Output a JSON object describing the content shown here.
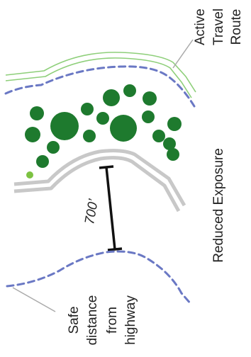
{
  "labels": {
    "active_travel_route": [
      "Active",
      "Travel",
      "Route"
    ],
    "reduced_exposure": "Reduced Exposure",
    "distance": "700’",
    "safe_distance": [
      "Safe",
      "distance",
      "from",
      "highway"
    ]
  },
  "colors": {
    "travel_route": "#8ecf7a",
    "dashed_boundary": "#6a78c4",
    "highway": "#c8c8c8",
    "tree": "#1e7a2e",
    "small_tree": "#7cc242",
    "measure": "#111111",
    "leader_line": "#aaaaaa",
    "text": "#222222"
  }
}
